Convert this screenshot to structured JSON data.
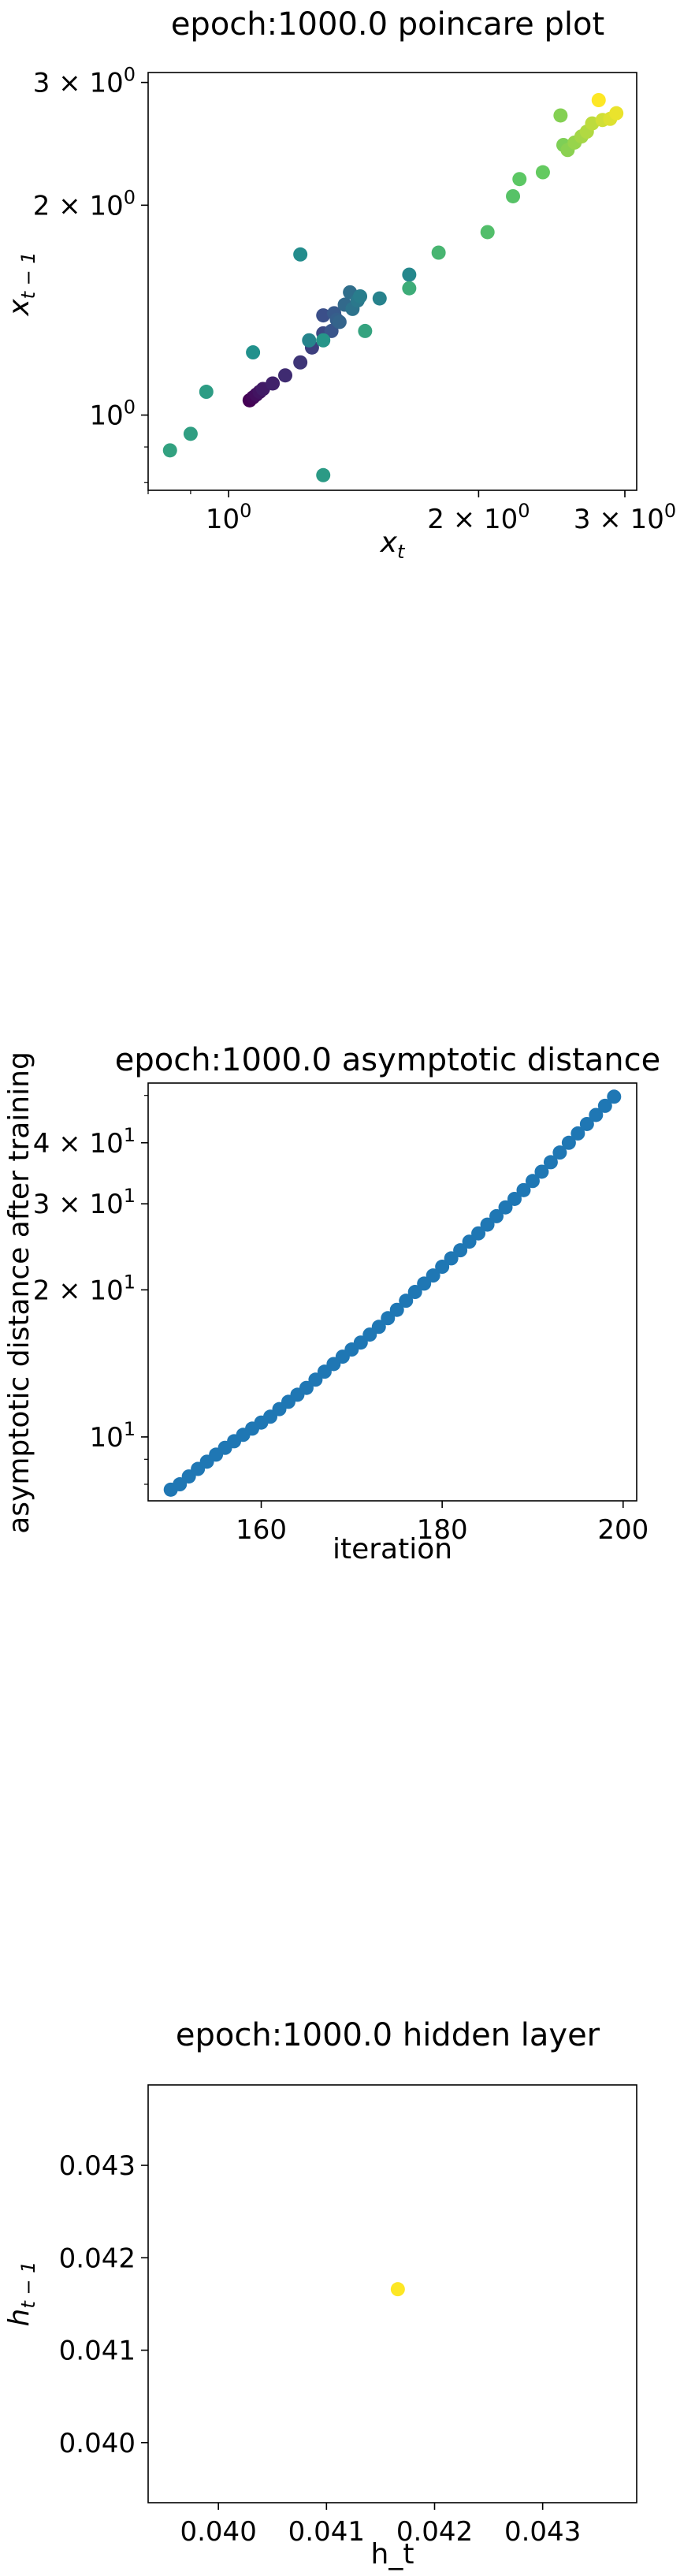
{
  "chart_data": [
    {
      "type": "scatter",
      "title": "epoch:1000.0 poincare plot",
      "xlabel": "x_t",
      "ylabel": "x_{t-1}",
      "xscale": "log",
      "yscale": "log",
      "xlim": [
        0.8,
        3.1
      ],
      "ylim": [
        0.78,
        3.1
      ],
      "xticks": [
        {
          "value": 1,
          "base": "10",
          "exp": "0"
        },
        {
          "value": 2,
          "base": "2 × 10",
          "exp": "0"
        },
        {
          "value": 3,
          "base": "3 × 10",
          "exp": "0"
        }
      ],
      "yticks": [
        {
          "value": 1,
          "base": "10",
          "exp": "0"
        },
        {
          "value": 2,
          "base": "2 × 10",
          "exp": "0"
        },
        {
          "value": 3,
          "base": "3 × 10",
          "exp": "0"
        }
      ],
      "colormap": [
        "#440154",
        "#3b528b",
        "#21918c",
        "#5ec962",
        "#fde725"
      ],
      "points": [
        {
          "x": 1.06,
          "y": 1.05,
          "c": 0.0
        },
        {
          "x": 1.07,
          "y": 1.06,
          "c": 0.02
        },
        {
          "x": 1.08,
          "y": 1.07,
          "c": 0.04
        },
        {
          "x": 1.09,
          "y": 1.08,
          "c": 0.06
        },
        {
          "x": 1.1,
          "y": 1.09,
          "c": 0.08
        },
        {
          "x": 1.13,
          "y": 1.11,
          "c": 0.1
        },
        {
          "x": 1.17,
          "y": 1.14,
          "c": 0.13
        },
        {
          "x": 1.22,
          "y": 1.19,
          "c": 0.16
        },
        {
          "x": 1.26,
          "y": 1.25,
          "c": 0.19
        },
        {
          "x": 1.3,
          "y": 1.31,
          "c": 0.22
        },
        {
          "x": 1.3,
          "y": 1.39,
          "c": 0.24
        },
        {
          "x": 1.33,
          "y": 1.32,
          "c": 0.26
        },
        {
          "x": 1.34,
          "y": 1.4,
          "c": 0.28
        },
        {
          "x": 1.35,
          "y": 1.37,
          "c": 0.3
        },
        {
          "x": 1.36,
          "y": 1.36,
          "c": 0.32
        },
        {
          "x": 1.38,
          "y": 1.44,
          "c": 0.34
        },
        {
          "x": 1.4,
          "y": 1.5,
          "c": 0.36
        },
        {
          "x": 1.41,
          "y": 1.42,
          "c": 0.38
        },
        {
          "x": 1.43,
          "y": 1.46,
          "c": 0.4
        },
        {
          "x": 1.44,
          "y": 1.48,
          "c": 0.42
        },
        {
          "x": 1.52,
          "y": 1.47,
          "c": 0.44
        },
        {
          "x": 1.65,
          "y": 1.59,
          "c": 0.46
        },
        {
          "x": 1.25,
          "y": 1.28,
          "c": 0.45
        },
        {
          "x": 1.22,
          "y": 1.7,
          "c": 0.48
        },
        {
          "x": 1.07,
          "y": 1.23,
          "c": 0.5
        },
        {
          "x": 1.3,
          "y": 1.28,
          "c": 0.52
        },
        {
          "x": 1.3,
          "y": 0.82,
          "c": 0.54
        },
        {
          "x": 0.94,
          "y": 1.08,
          "c": 0.55
        },
        {
          "x": 0.9,
          "y": 0.94,
          "c": 0.56
        },
        {
          "x": 0.85,
          "y": 0.89,
          "c": 0.57
        },
        {
          "x": 1.46,
          "y": 1.32,
          "c": 0.58
        },
        {
          "x": 1.65,
          "y": 1.52,
          "c": 0.62
        },
        {
          "x": 1.79,
          "y": 1.71,
          "c": 0.66
        },
        {
          "x": 2.05,
          "y": 1.83,
          "c": 0.7
        },
        {
          "x": 2.2,
          "y": 2.06,
          "c": 0.72
        },
        {
          "x": 2.24,
          "y": 2.18,
          "c": 0.74
        },
        {
          "x": 2.39,
          "y": 2.23,
          "c": 0.76
        },
        {
          "x": 2.53,
          "y": 2.44,
          "c": 0.8
        },
        {
          "x": 2.56,
          "y": 2.4,
          "c": 0.82
        },
        {
          "x": 2.61,
          "y": 2.46,
          "c": 0.84
        },
        {
          "x": 2.66,
          "y": 2.51,
          "c": 0.86
        },
        {
          "x": 2.7,
          "y": 2.55,
          "c": 0.88
        },
        {
          "x": 2.74,
          "y": 2.62,
          "c": 0.9
        },
        {
          "x": 2.82,
          "y": 2.65,
          "c": 0.93
        },
        {
          "x": 2.88,
          "y": 2.66,
          "c": 0.95
        },
        {
          "x": 2.93,
          "y": 2.71,
          "c": 0.97
        },
        {
          "x": 2.79,
          "y": 2.83,
          "c": 1.0
        },
        {
          "x": 2.51,
          "y": 2.69,
          "c": 0.81
        }
      ]
    },
    {
      "type": "scatter",
      "title": "epoch:1000.0 asymptotic distance",
      "xlabel": "iteration",
      "ylabel": "asymptotic distance after training",
      "yscale": "log",
      "xlim": [
        147.5,
        201.5
      ],
      "ylim": [
        7.4,
        53
      ],
      "xticks": [
        {
          "value": 160,
          "label": "160"
        },
        {
          "value": 180,
          "label": "180"
        },
        {
          "value": 200,
          "label": "200"
        }
      ],
      "yticks": [
        {
          "value": 10,
          "base": "10",
          "exp": "1"
        },
        {
          "value": 20,
          "base": "2 × 10",
          "exp": "1"
        },
        {
          "value": 30,
          "base": "3 × 10",
          "exp": "1"
        },
        {
          "value": 40,
          "base": "4 × 10",
          "exp": "1"
        }
      ],
      "color": "#1f77b4",
      "x": [
        150,
        151,
        152,
        153,
        154,
        155,
        156,
        157,
        158,
        159,
        160,
        161,
        162,
        163,
        164,
        165,
        166,
        167,
        168,
        169,
        170,
        171,
        172,
        173,
        174,
        175,
        176,
        177,
        178,
        179,
        180,
        181,
        182,
        183,
        184,
        185,
        186,
        187,
        188,
        189,
        190,
        191,
        192,
        193,
        194,
        195,
        196,
        197,
        198,
        199
      ],
      "y": [
        7.8,
        8.0,
        8.3,
        8.6,
        8.9,
        9.2,
        9.5,
        9.8,
        10.1,
        10.4,
        10.7,
        11.0,
        11.4,
        11.8,
        12.2,
        12.6,
        13.1,
        13.6,
        14.1,
        14.6,
        15.1,
        15.6,
        16.2,
        16.8,
        17.5,
        18.2,
        19.0,
        19.8,
        20.6,
        21.4,
        22.3,
        23.2,
        24.1,
        25.1,
        26.1,
        27.2,
        28.3,
        29.5,
        30.7,
        32.0,
        33.4,
        34.9,
        36.5,
        38.2,
        40.0,
        41.8,
        43.7,
        45.6,
        47.6,
        49.7
      ]
    },
    {
      "type": "scatter",
      "title": "epoch:1000.0 hidden layer",
      "xlabel": "h_t",
      "ylabel": "h_{t-1}",
      "xlim": [
        0.03935,
        0.04387
      ],
      "ylim": [
        0.03935,
        0.04387
      ],
      "xticks": [
        {
          "value": 0.04,
          "label": "0.040"
        },
        {
          "value": 0.041,
          "label": "0.041"
        },
        {
          "value": 0.042,
          "label": "0.042"
        },
        {
          "value": 0.043,
          "label": "0.043"
        }
      ],
      "yticks": [
        {
          "value": 0.04,
          "label": "0.040"
        },
        {
          "value": 0.041,
          "label": "0.041"
        },
        {
          "value": 0.042,
          "label": "0.042"
        },
        {
          "value": 0.043,
          "label": "0.043"
        }
      ],
      "color": "#fde725",
      "points": [
        {
          "x": 0.04166,
          "y": 0.04166
        }
      ]
    }
  ]
}
